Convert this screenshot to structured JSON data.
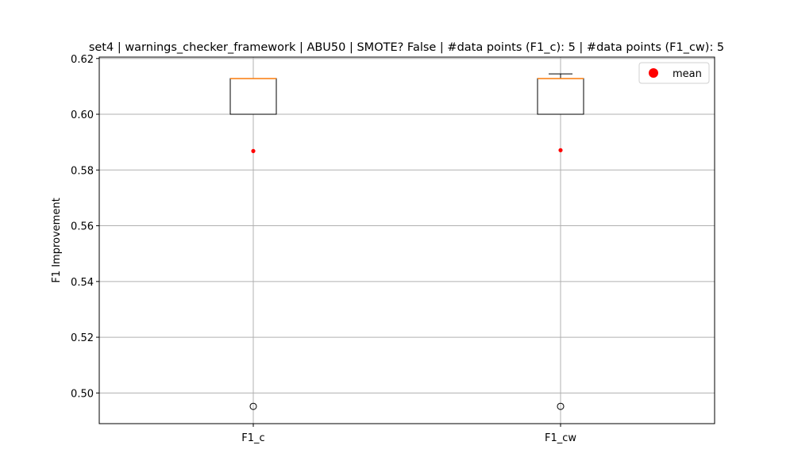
{
  "chart_data": {
    "type": "box",
    "title": "set4 | warnings_checker_framework | ABU50 | SMOTE? False | #data points (F1_c): 5 | #data points (F1_cw): 5",
    "xlabel": "",
    "ylabel": "F1 Improvement",
    "categories": [
      "F1_c",
      "F1_cw"
    ],
    "ylim": [
      0.489,
      0.6205
    ],
    "yticks": [
      0.5,
      0.52,
      0.54,
      0.56,
      0.58,
      0.6,
      0.62
    ],
    "ytick_labels": [
      "0.50",
      "0.52",
      "0.54",
      "0.56",
      "0.58",
      "0.60",
      "0.62"
    ],
    "grid": true,
    "legend": {
      "position": "upper-right",
      "entries": [
        {
          "label": "mean",
          "color": "#ff0000"
        }
      ]
    },
    "series": [
      {
        "category": "F1_c",
        "whisker_low": 0.6,
        "q1": 0.6,
        "median": 0.6128,
        "q3": 0.6128,
        "whisker_high": 0.6128,
        "mean": 0.5868,
        "outliers": [
          0.4952
        ]
      },
      {
        "category": "F1_cw",
        "whisker_low": 0.6,
        "q1": 0.6,
        "median": 0.6128,
        "q3": 0.6128,
        "whisker_high": 0.6145,
        "mean": 0.5871,
        "outliers": [
          0.4952
        ]
      }
    ],
    "colors": {
      "box": "#000000",
      "median": "#ff7f0e",
      "mean": "#ff0000",
      "grid": "#b0b0b0",
      "outlier": "#000000"
    }
  }
}
